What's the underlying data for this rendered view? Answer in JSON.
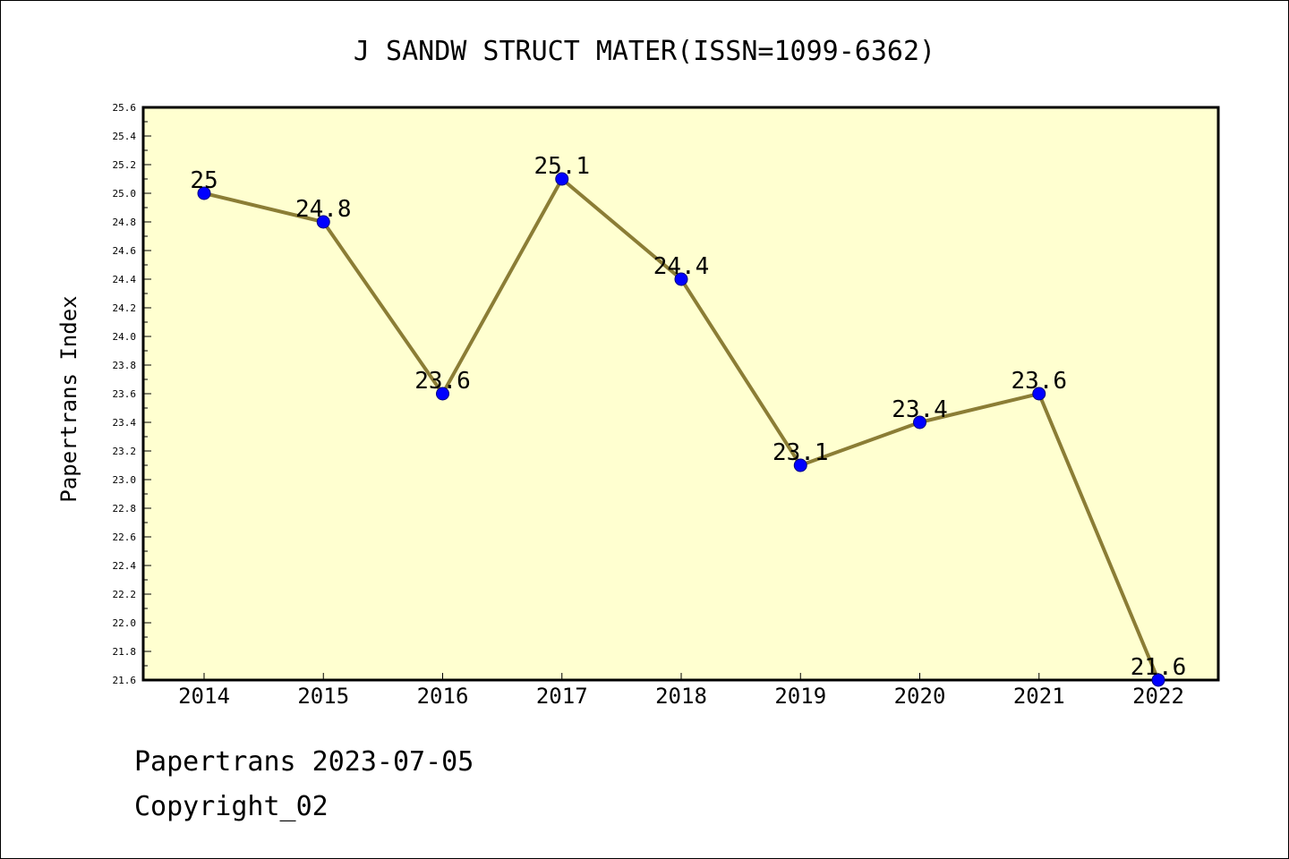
{
  "chart_data": {
    "type": "line",
    "title": "J SANDW STRUCT MATER(ISSN=1099-6362)",
    "xlabel": "",
    "ylabel": "Papertrans Index",
    "x": [
      "2014",
      "2015",
      "2016",
      "2017",
      "2018",
      "2019",
      "2020",
      "2021",
      "2022"
    ],
    "series": [
      {
        "values": [
          25,
          24.8,
          23.6,
          25.1,
          24.4,
          23.1,
          23.4,
          23.6,
          21.6
        ],
        "point_labels": [
          "25",
          "24.8",
          "23.6",
          "25.1",
          "24.4",
          "23.1",
          "23.4",
          "23.6",
          "21.6"
        ]
      }
    ],
    "ylim": [
      21.6,
      25.6
    ],
    "ytick_step": 0.2,
    "grid": false,
    "legend": "none",
    "colors": {
      "plot_background": "#ffffd0",
      "line": "#8b7d35",
      "marker_fill": "#0000ff",
      "marker_edge": "#000080",
      "axes": "#000000"
    }
  },
  "footer": {
    "date_line": "Papertrans 2023-07-05",
    "copyright": "Copyright_02"
  }
}
